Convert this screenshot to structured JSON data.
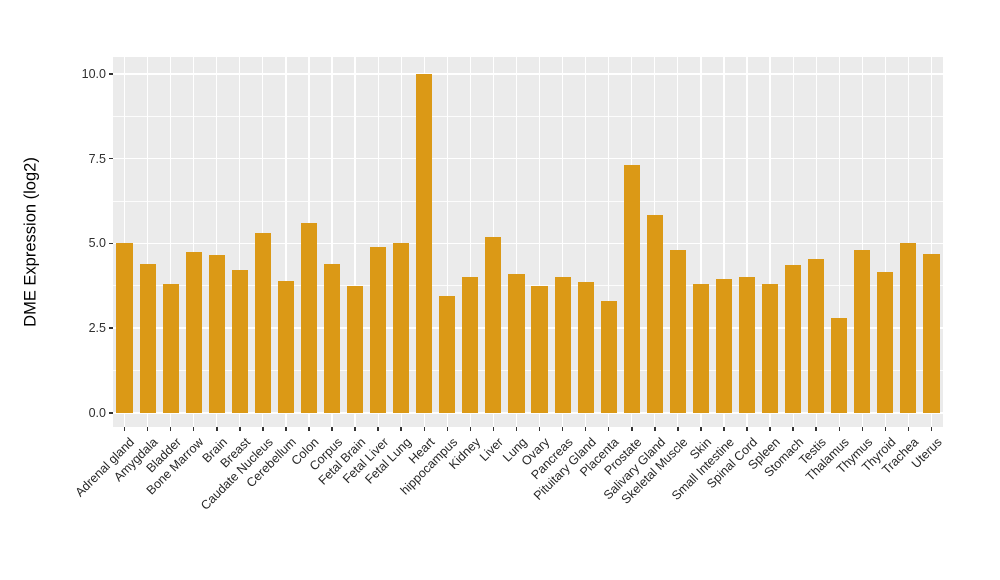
{
  "figure": {
    "background_color": "#FFFFFF",
    "panel_background_color": "#EBEBEB",
    "gridline_color": "#FFFFFF",
    "bar_color": "#DB9916",
    "axis_text_color": "#303030",
    "axis_title_color": "#000000",
    "tick_mark_color": "#333333"
  },
  "chart_data": {
    "type": "bar",
    "title": "",
    "xlabel": "",
    "ylabel": "DME Expression (log2)",
    "ylim": [
      0,
      10.5
    ],
    "yticks": [
      0.0,
      2.5,
      5.0,
      7.5,
      10.0
    ],
    "ytick_labels": [
      "0.0",
      "2.5",
      "5.0",
      "7.5",
      "10.0"
    ],
    "grid": true,
    "legend": false,
    "x_label_angle_deg": 45,
    "categories": [
      "Adrenal gland",
      "Amygdala",
      "Bladder",
      "Bone Marrow",
      "Brain",
      "Breast",
      "Caudate Nucleus",
      "Cerebellum",
      "Colon",
      "Corpus",
      "Fetal Brain",
      "Fetal Liver",
      "Fetal Lung",
      "Heart",
      "hippocampus",
      "Kidney",
      "Liver",
      "Lung",
      "Ovary",
      "Pancreas",
      "Pituitary Gland",
      "Placenta",
      "Prostate",
      "Salivary Gland",
      "Skeletal Muscle",
      "Skin",
      "Small Intestine",
      "Spinal Cord",
      "Spleen",
      "Stomach",
      "Testis",
      "Thalamus",
      "Thymus",
      "Thyroid",
      "Trachea",
      "Uterus"
    ],
    "values": [
      5.0,
      4.4,
      3.8,
      4.75,
      4.65,
      4.2,
      5.3,
      3.9,
      5.6,
      4.4,
      3.75,
      4.9,
      5.0,
      10.0,
      3.45,
      4.0,
      5.2,
      4.1,
      3.75,
      4.0,
      3.85,
      3.3,
      7.3,
      5.85,
      4.8,
      3.8,
      3.95,
      4.0,
      3.8,
      4.35,
      4.55,
      2.8,
      4.8,
      4.15,
      5.0,
      4.7
    ]
  }
}
